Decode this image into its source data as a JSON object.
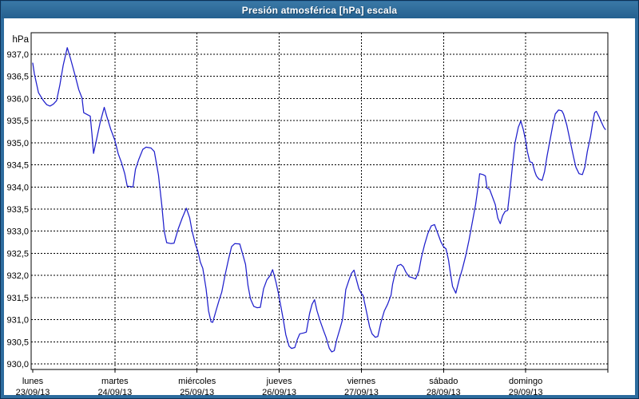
{
  "title": "Presión atmosférica [hPa] escala",
  "y_axis": {
    "unit_label": "hPa",
    "min": 930.0,
    "max": 937.0,
    "step": 0.5,
    "tick_labels": [
      "937,0",
      "936,5",
      "936,0",
      "935,5",
      "935,0",
      "934,5",
      "934,0",
      "933,5",
      "933,0",
      "932,5",
      "932,0",
      "931,5",
      "931,0",
      "930,5",
      "930,0"
    ]
  },
  "x_axis": {
    "days": [
      {
        "name": "lunes",
        "date": "23/09/13"
      },
      {
        "name": "martes",
        "date": "24/09/13"
      },
      {
        "name": "miércoles",
        "date": "25/09/13"
      },
      {
        "name": "jueves",
        "date": "26/09/13"
      },
      {
        "name": "viernes",
        "date": "27/09/13"
      },
      {
        "name": "sábado",
        "date": "28/09/13"
      },
      {
        "name": "domingo",
        "date": "29/09/13"
      }
    ]
  },
  "colors": {
    "titlebar": "#2d6c9e",
    "titlebar_text": "#ffffff",
    "outer_border": "#0e3256",
    "background": "#ffffff",
    "grid": "#000000",
    "frame": "#000000",
    "text": "#000000",
    "curve": "#1f1fcc"
  },
  "chart_data": {
    "type": "line",
    "title": "Presión atmosférica [hPa] escala",
    "xlabel": "",
    "ylabel": "hPa",
    "ylim": [
      929.9,
      937.5
    ],
    "xlim_days": [
      0,
      7
    ],
    "grid": true,
    "legend": "none",
    "x_categories": [
      "lunes 23/09/13",
      "martes 24/09/13",
      "miércoles 25/09/13",
      "jueves 26/09/13",
      "viernes 27/09/13",
      "sábado 28/09/13",
      "domingo 29/09/13"
    ],
    "series": [
      {
        "name": "Presión atmosférica [hPa]",
        "color": "#1f1fcc",
        "x_days": [
          0,
          0.02,
          0.07,
          0.13,
          0.17,
          0.21,
          0.25,
          0.29,
          0.33,
          0.37,
          0.42,
          0.46,
          0.52,
          0.56,
          0.6,
          0.62,
          0.67,
          0.7,
          0.72,
          0.74,
          0.78,
          0.82,
          0.87,
          0.9,
          0.95,
          1.0,
          1.04,
          1.08,
          1.12,
          1.15,
          1.22,
          1.25,
          1.29,
          1.34,
          1.38,
          1.44,
          1.48,
          1.53,
          1.57,
          1.6,
          1.63,
          1.68,
          1.72,
          1.77,
          1.82,
          1.87,
          1.91,
          1.94,
          1.98,
          2.01,
          2.04,
          2.07,
          2.11,
          2.14,
          2.17,
          2.19,
          2.23,
          2.27,
          2.3,
          2.34,
          2.38,
          2.42,
          2.46,
          2.52,
          2.56,
          2.59,
          2.62,
          2.65,
          2.69,
          2.73,
          2.77,
          2.81,
          2.85,
          2.89,
          2.92,
          2.96,
          2.99,
          3.02,
          3.05,
          3.08,
          3.12,
          3.15,
          3.19,
          3.22,
          3.25,
          3.3,
          3.33,
          3.37,
          3.4,
          3.43,
          3.46,
          3.5,
          3.54,
          3.57,
          3.61,
          3.64,
          3.67,
          3.7,
          3.74,
          3.77,
          3.81,
          3.85,
          3.88,
          3.91,
          3.94,
          3.97,
          4.0,
          4.02,
          4.06,
          4.1,
          4.13,
          4.17,
          4.2,
          4.24,
          4.28,
          4.32,
          4.36,
          4.38,
          4.41,
          4.44,
          4.48,
          4.51,
          4.54,
          4.58,
          4.62,
          4.66,
          4.7,
          4.73,
          4.77,
          4.81,
          4.85,
          4.89,
          4.93,
          4.97,
          5.0,
          5.03,
          5.06,
          5.08,
          5.11,
          5.15,
          5.19,
          5.23,
          5.27,
          5.31,
          5.35,
          5.39,
          5.42,
          5.44,
          5.48,
          5.51,
          5.53,
          5.56,
          5.59,
          5.63,
          5.66,
          5.69,
          5.72,
          5.75,
          5.78,
          5.81,
          5.84,
          5.87,
          5.91,
          5.94,
          5.97,
          6.0,
          6.02,
          6.05,
          6.08,
          6.11,
          6.13,
          6.16,
          6.2,
          6.23,
          6.26,
          6.29,
          6.33,
          6.36,
          6.4,
          6.44,
          6.46,
          6.5,
          6.54,
          6.58,
          6.61,
          6.65,
          6.69,
          6.72,
          6.75,
          6.79,
          6.82,
          6.84,
          6.86,
          6.89,
          6.92,
          6.95,
          6.97
        ],
        "hPa": [
          936.8,
          936.55,
          936.13,
          935.95,
          935.86,
          935.83,
          935.87,
          935.95,
          936.3,
          936.75,
          937.15,
          936.9,
          936.49,
          936.2,
          936.01,
          935.68,
          935.63,
          935.6,
          935.2,
          934.76,
          935.1,
          935.45,
          935.8,
          935.6,
          935.3,
          935.05,
          934.75,
          934.55,
          934.3,
          934.02,
          934.0,
          934.4,
          934.62,
          934.85,
          934.9,
          934.88,
          934.8,
          934.27,
          933.6,
          933.0,
          932.74,
          932.72,
          932.73,
          933.05,
          933.3,
          933.52,
          933.3,
          933.0,
          932.7,
          932.55,
          932.3,
          932.16,
          931.7,
          931.2,
          930.95,
          930.94,
          931.2,
          931.45,
          931.62,
          932.0,
          932.34,
          932.65,
          932.72,
          932.71,
          932.45,
          932.25,
          931.77,
          931.47,
          931.3,
          931.27,
          931.28,
          931.7,
          931.9,
          932.0,
          932.13,
          931.85,
          931.6,
          931.3,
          931.0,
          930.66,
          930.4,
          930.35,
          930.37,
          930.55,
          930.68,
          930.7,
          930.72,
          931.14,
          931.35,
          931.45,
          931.2,
          930.96,
          930.75,
          930.6,
          930.35,
          930.27,
          930.3,
          930.55,
          930.8,
          931.0,
          931.68,
          931.9,
          932.05,
          932.12,
          931.9,
          931.7,
          931.59,
          931.55,
          931.2,
          930.84,
          930.68,
          930.6,
          930.62,
          930.95,
          931.2,
          931.35,
          931.55,
          931.8,
          932.05,
          932.22,
          932.25,
          932.2,
          932.08,
          931.97,
          931.95,
          931.92,
          932.1,
          932.4,
          932.7,
          932.95,
          933.12,
          933.15,
          932.95,
          932.75,
          932.65,
          932.6,
          932.35,
          932.1,
          931.75,
          931.6,
          931.9,
          932.15,
          932.45,
          932.8,
          933.2,
          933.6,
          934.0,
          934.3,
          934.28,
          934.25,
          933.97,
          933.95,
          933.8,
          933.6,
          933.3,
          933.17,
          933.35,
          933.45,
          933.47,
          933.95,
          934.5,
          935.0,
          935.35,
          935.49,
          935.3,
          935.05,
          934.8,
          934.57,
          934.55,
          934.35,
          934.25,
          934.18,
          934.15,
          934.35,
          934.7,
          935.0,
          935.4,
          935.65,
          935.74,
          935.72,
          935.65,
          935.4,
          935.05,
          934.7,
          934.45,
          934.3,
          934.28,
          934.45,
          934.8,
          935.15,
          935.5,
          935.68,
          935.71,
          935.6,
          935.47,
          935.35,
          935.3
        ]
      }
    ]
  }
}
